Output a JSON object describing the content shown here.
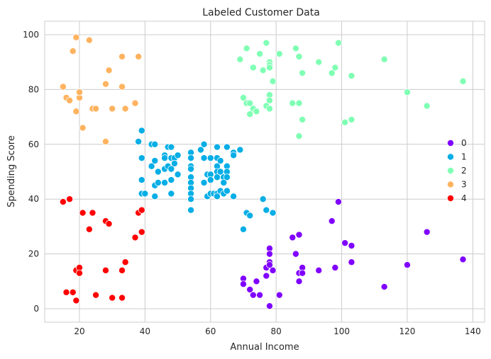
{
  "chart_data": {
    "type": "scatter",
    "title": "Labeled Customer Data",
    "xlabel": "Annual Income",
    "ylabel": "Spending Score",
    "xlim": [
      9.4,
      143.6
    ],
    "ylim": [
      -4.9,
      104.9
    ],
    "xticks": [
      20,
      40,
      60,
      80,
      100,
      120,
      140
    ],
    "yticks": [
      0,
      20,
      40,
      60,
      80,
      100
    ],
    "grid": true,
    "legend_position": "center-right",
    "series": [
      {
        "name": "0",
        "color": "#8000ff",
        "points": [
          [
            70,
            11
          ],
          [
            70,
            9
          ],
          [
            72,
            7
          ],
          [
            73,
            5
          ],
          [
            74,
            10
          ],
          [
            75,
            5
          ],
          [
            77,
            12
          ],
          [
            77,
            15
          ],
          [
            78,
            22
          ],
          [
            78,
            20
          ],
          [
            78,
            17
          ],
          [
            78,
            16
          ],
          [
            78,
            1
          ],
          [
            79,
            14
          ],
          [
            81,
            5
          ],
          [
            85,
            26
          ],
          [
            86,
            20
          ],
          [
            87,
            27
          ],
          [
            87,
            13
          ],
          [
            87,
            10
          ],
          [
            88,
            15
          ],
          [
            88,
            13
          ],
          [
            93,
            14
          ],
          [
            97,
            32
          ],
          [
            98,
            15
          ],
          [
            99,
            39
          ],
          [
            101,
            24
          ],
          [
            103,
            23
          ],
          [
            103,
            17
          ],
          [
            113,
            8
          ],
          [
            120,
            16
          ],
          [
            126,
            28
          ],
          [
            137,
            18
          ]
        ]
      },
      {
        "name": "1",
        "color": "#06aee6",
        "points": [
          [
            38,
            61
          ],
          [
            39,
            65
          ],
          [
            39,
            55
          ],
          [
            39,
            47
          ],
          [
            39,
            42
          ],
          [
            40,
            42
          ],
          [
            42,
            60
          ],
          [
            42,
            52
          ],
          [
            43,
            60
          ],
          [
            43,
            54
          ],
          [
            43,
            45
          ],
          [
            43,
            41
          ],
          [
            44,
            50
          ],
          [
            44,
            46
          ],
          [
            46,
            51
          ],
          [
            46,
            46
          ],
          [
            46,
            56
          ],
          [
            46,
            55
          ],
          [
            47,
            59
          ],
          [
            47,
            52
          ],
          [
            48,
            59
          ],
          [
            48,
            51
          ],
          [
            48,
            47
          ],
          [
            48,
            55
          ],
          [
            48,
            42
          ],
          [
            49,
            55
          ],
          [
            49,
            53
          ],
          [
            50,
            49
          ],
          [
            50,
            56
          ],
          [
            50,
            49
          ],
          [
            54,
            57
          ],
          [
            54,
            55
          ],
          [
            54,
            52
          ],
          [
            54,
            51
          ],
          [
            54,
            48
          ],
          [
            54,
            46
          ],
          [
            54,
            44
          ],
          [
            54,
            42
          ],
          [
            54,
            40
          ],
          [
            54,
            36
          ],
          [
            57,
            58
          ],
          [
            58,
            60
          ],
          [
            58,
            55
          ],
          [
            58,
            46
          ],
          [
            59,
            49
          ],
          [
            59,
            41
          ],
          [
            60,
            55
          ],
          [
            60,
            49
          ],
          [
            60,
            47
          ],
          [
            60,
            42
          ],
          [
            61,
            42
          ],
          [
            62,
            59
          ],
          [
            62,
            55
          ],
          [
            62,
            52
          ],
          [
            62,
            50
          ],
          [
            62,
            48
          ],
          [
            62,
            42
          ],
          [
            62,
            41
          ],
          [
            63,
            50
          ],
          [
            63,
            43
          ],
          [
            63,
            54
          ],
          [
            64,
            48
          ],
          [
            64,
            46
          ],
          [
            64,
            42
          ],
          [
            65,
            59
          ],
          [
            65,
            52
          ],
          [
            65,
            50
          ],
          [
            65,
            48
          ],
          [
            65,
            43
          ],
          [
            67,
            57
          ],
          [
            67,
            56
          ],
          [
            67,
            41
          ],
          [
            69,
            58
          ],
          [
            70,
            29
          ],
          [
            71,
            35
          ],
          [
            72,
            34
          ],
          [
            76,
            40
          ],
          [
            77,
            36
          ],
          [
            79,
            35
          ]
        ]
      },
      {
        "name": "2",
        "color": "#80ffb4",
        "points": [
          [
            69,
            91
          ],
          [
            70,
            77
          ],
          [
            71,
            95
          ],
          [
            71,
            75
          ],
          [
            72,
            75
          ],
          [
            72,
            71
          ],
          [
            73,
            73
          ],
          [
            73,
            88
          ],
          [
            74,
            72
          ],
          [
            75,
            93
          ],
          [
            76,
            87
          ],
          [
            77,
            97
          ],
          [
            77,
            74
          ],
          [
            78,
            90
          ],
          [
            78,
            89
          ],
          [
            78,
            88
          ],
          [
            78,
            78
          ],
          [
            78,
            76
          ],
          [
            78,
            73
          ],
          [
            79,
            83
          ],
          [
            81,
            93
          ],
          [
            85,
            75
          ],
          [
            86,
            95
          ],
          [
            87,
            75
          ],
          [
            87,
            63
          ],
          [
            87,
            92
          ],
          [
            88,
            86
          ],
          [
            88,
            69
          ],
          [
            93,
            90
          ],
          [
            97,
            86
          ],
          [
            98,
            88
          ],
          [
            99,
            97
          ],
          [
            101,
            68
          ],
          [
            103,
            85
          ],
          [
            103,
            69
          ],
          [
            113,
            91
          ],
          [
            120,
            79
          ],
          [
            126,
            74
          ],
          [
            137,
            83
          ]
        ]
      },
      {
        "name": "3",
        "color": "#ffb360",
        "points": [
          [
            15,
            81
          ],
          [
            16,
            77
          ],
          [
            17,
            76
          ],
          [
            18,
            94
          ],
          [
            19,
            99
          ],
          [
            19,
            72
          ],
          [
            20,
            77
          ],
          [
            20,
            79
          ],
          [
            21,
            66
          ],
          [
            23,
            98
          ],
          [
            24,
            73
          ],
          [
            25,
            73
          ],
          [
            28,
            82
          ],
          [
            28,
            61
          ],
          [
            29,
            87
          ],
          [
            30,
            73
          ],
          [
            33,
            92
          ],
          [
            33,
            81
          ],
          [
            34,
            73
          ],
          [
            37,
            75
          ],
          [
            38,
            92
          ]
        ]
      },
      {
        "name": "4",
        "color": "#ff0000",
        "points": [
          [
            15,
            39
          ],
          [
            16,
            6
          ],
          [
            17,
            40
          ],
          [
            18,
            6
          ],
          [
            19,
            3
          ],
          [
            19,
            14
          ],
          [
            20,
            15
          ],
          [
            20,
            13
          ],
          [
            21,
            35
          ],
          [
            23,
            29
          ],
          [
            24,
            35
          ],
          [
            25,
            5
          ],
          [
            28,
            14
          ],
          [
            28,
            32
          ],
          [
            29,
            31
          ],
          [
            30,
            4
          ],
          [
            33,
            4
          ],
          [
            33,
            14
          ],
          [
            34,
            17
          ],
          [
            37,
            26
          ],
          [
            38,
            35
          ],
          [
            39,
            36
          ],
          [
            39,
            28
          ]
        ]
      }
    ]
  }
}
